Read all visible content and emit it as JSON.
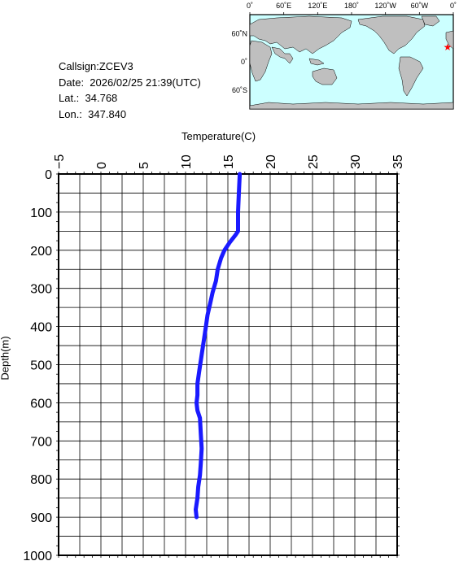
{
  "info": {
    "callsign": "Callsign:ZCEV3",
    "date": "Date:  2026/02/25 21:39(UTC)",
    "lat": "Lat.:  34.768",
    "lon": "Lon.:  347.840"
  },
  "map": {
    "lon_labels": [
      "0˚",
      "60˚E",
      "120˚E",
      "180˚",
      "120˚W",
      "60˚W",
      "0˚"
    ],
    "lat_labels": [
      "60˚N",
      "0˚",
      "60˚S"
    ],
    "ocean_color": "#ccffff",
    "land_color": "#bfbfbf",
    "marker_color": "#ff0000",
    "marker_icon": "star-icon"
  },
  "chart_data": {
    "type": "line",
    "xlabel": "Temperature(C)",
    "ylabel": "Depth(m)",
    "xlim": [
      -5,
      35
    ],
    "ylim": [
      1000,
      0
    ],
    "x_ticks": [
      -5,
      0,
      5,
      10,
      15,
      20,
      25,
      30,
      35
    ],
    "y_ticks": [
      0,
      100,
      200,
      300,
      400,
      500,
      600,
      700,
      800,
      900,
      1000
    ],
    "grid": true,
    "line_color": "#1a1aff",
    "series": [
      {
        "points": [
          [
            16.4,
            0
          ],
          [
            16.3,
            50
          ],
          [
            16.2,
            100
          ],
          [
            16.2,
            150
          ],
          [
            15.9,
            160
          ],
          [
            15.2,
            180
          ],
          [
            14.6,
            200
          ],
          [
            14.2,
            220
          ],
          [
            13.8,
            250
          ],
          [
            13.6,
            280
          ],
          [
            13.2,
            310
          ],
          [
            12.9,
            340
          ],
          [
            12.6,
            370
          ],
          [
            12.4,
            400
          ],
          [
            12.2,
            430
          ],
          [
            12.0,
            460
          ],
          [
            11.8,
            490
          ],
          [
            11.6,
            520
          ],
          [
            11.4,
            550
          ],
          [
            11.4,
            580
          ],
          [
            11.3,
            600
          ],
          [
            11.4,
            620
          ],
          [
            11.7,
            640
          ],
          [
            11.8,
            680
          ],
          [
            11.9,
            720
          ],
          [
            11.8,
            760
          ],
          [
            11.7,
            790
          ],
          [
            11.5,
            820
          ],
          [
            11.4,
            850
          ],
          [
            11.2,
            880
          ],
          [
            11.3,
            900
          ]
        ]
      }
    ]
  }
}
